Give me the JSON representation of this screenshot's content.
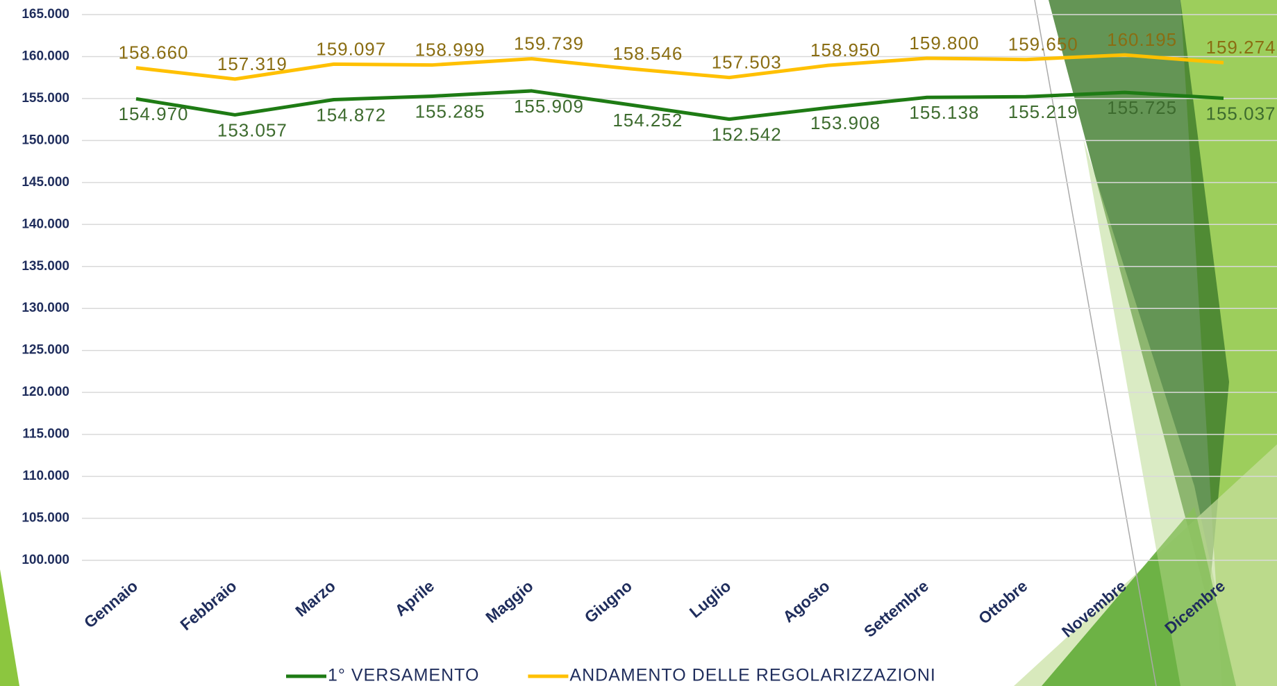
{
  "chart_data": {
    "type": "line",
    "categories": [
      "Gennaio",
      "Febbraio",
      "Marzo",
      "Aprile",
      "Maggio",
      "Giugno",
      "Luglio",
      "Agosto",
      "Settembre",
      "Ottobre",
      "Novembre",
      "Dicembre"
    ],
    "series": [
      {
        "name": "1° VERSAMENTO",
        "color": "#1e7b14",
        "values": [
          154970,
          153057,
          154872,
          155285,
          155909,
          154252,
          152542,
          153908,
          155138,
          155219,
          155725,
          155037
        ],
        "value_labels": [
          "154.970",
          "153.057",
          "154.872",
          "155.285",
          "155.909",
          "154.252",
          "152.542",
          "153.908",
          "155.138",
          "155.219",
          "155.725",
          "155.037"
        ]
      },
      {
        "name": "ANDAMENTO DELLE REGOLARIZZAZIONI",
        "color": "#ffc000",
        "values": [
          158660,
          157319,
          159097,
          158999,
          159739,
          158546,
          157503,
          158950,
          159800,
          159650,
          160195,
          159274
        ],
        "value_labels": [
          "158.660",
          "157.319",
          "159.097",
          "158.999",
          "159.739",
          "158.546",
          "157.503",
          "158.950",
          "159.800",
          "159.650",
          "160.195",
          "159.274"
        ]
      }
    ],
    "ylim": [
      100000,
      165000
    ],
    "yticks": [
      {
        "value": 100000,
        "label": "100.000"
      },
      {
        "value": 105000,
        "label": "105.000"
      },
      {
        "value": 110000,
        "label": "110.000"
      },
      {
        "value": 115000,
        "label": "115.000"
      },
      {
        "value": 120000,
        "label": "120.000"
      },
      {
        "value": 125000,
        "label": "125.000"
      },
      {
        "value": 130000,
        "label": "130.000"
      },
      {
        "value": 135000,
        "label": "135.000"
      },
      {
        "value": 140000,
        "label": "140.000"
      },
      {
        "value": 145000,
        "label": "145.000"
      },
      {
        "value": 150000,
        "label": "150.000"
      },
      {
        "value": 155000,
        "label": "155.000"
      },
      {
        "value": 160000,
        "label": "160.000"
      },
      {
        "value": 165000,
        "label": "165.000"
      }
    ],
    "grid": true
  }
}
